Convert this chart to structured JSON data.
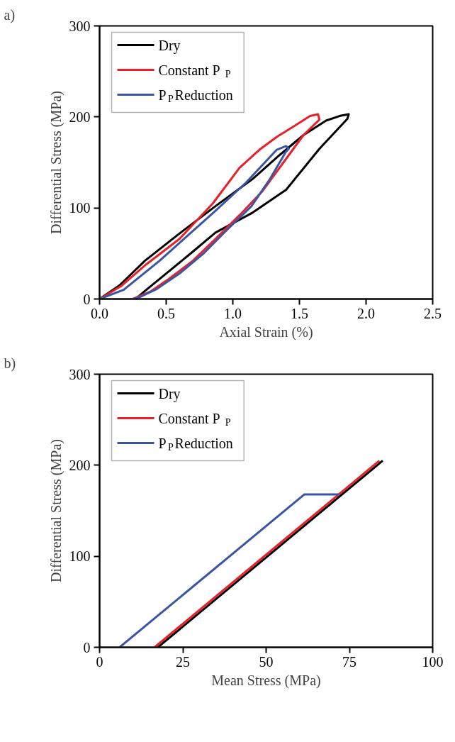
{
  "chart_data": [
    {
      "type": "line",
      "title": "a)",
      "xlabel": "Axial Strain (%)",
      "ylabel": "Differential Stress (MPa)",
      "xlim": [
        0,
        2.5
      ],
      "ylim": [
        0,
        300
      ],
      "xticks": [
        {
          "value": 0,
          "label": "0.0"
        },
        0.5,
        {
          "value": 1,
          "label": "1.0"
        },
        1.5,
        {
          "value": 2,
          "label": "2.0"
        },
        2.5
      ],
      "yticks": [
        0,
        100,
        200,
        300
      ],
      "grid": false,
      "legend": "top left",
      "marker": "none",
      "line_style": "solid",
      "series": [
        {
          "name": "Dry",
          "color": "#000000",
          "x": [
            0,
            0.15,
            0.34,
            0.6,
            0.87,
            1.15,
            1.35,
            1.53,
            1.7,
            1.8,
            1.87,
            1.86,
            1.65,
            1.4,
            1.15,
            0.87,
            0.7,
            0.5,
            0.35,
            0.27
          ],
          "values": [
            0,
            15,
            42,
            72,
            102,
            132,
            158,
            180,
            196,
            201,
            203,
            198,
            165,
            120,
            95,
            73,
            52,
            28,
            10,
            0
          ]
        },
        {
          "name": "Constant P$_{P}$",
          "color": "#e8202a",
          "x": [
            0,
            0.16,
            0.35,
            0.6,
            0.85,
            1.05,
            1.2,
            1.33,
            1.45,
            1.58,
            1.64,
            1.65,
            1.53,
            1.38,
            1.22,
            1.05,
            0.87,
            0.7,
            0.52,
            0.38,
            0.25
          ],
          "values": [
            0,
            14,
            38,
            66,
            105,
            144,
            164,
            178,
            189,
            201,
            203,
            197,
            180,
            150,
            118,
            92,
            66,
            42,
            22,
            8,
            0
          ]
        },
        {
          "name": "P$_{P}$Reduction",
          "color": "#3a55a4",
          "x": [
            0,
            0.18,
            0.45,
            0.87,
            1.1,
            1.33,
            1.4,
            1.42,
            1.4,
            1.28,
            1.14,
            0.95,
            0.78,
            0.6,
            0.43,
            0.3,
            0.25
          ],
          "values": [
            0,
            10,
            42,
            97,
            128,
            164,
            168,
            165,
            162,
            132,
            102,
            75,
            50,
            28,
            11,
            2,
            0
          ]
        }
      ]
    },
    {
      "type": "line",
      "title": "b)",
      "xlabel": "Mean Stress (MPa)",
      "ylabel": "Differential Stress (MPa)",
      "xlim": [
        0,
        100
      ],
      "ylim": [
        0,
        300
      ],
      "xticks": [
        0,
        25,
        50,
        75,
        100
      ],
      "yticks": [
        0,
        100,
        200,
        300
      ],
      "grid": false,
      "legend": "top left",
      "marker": "none",
      "line_style": "solid",
      "series": [
        {
          "name": "Dry",
          "color": "#000000",
          "x": [
            17.5,
            85
          ],
          "values": [
            0,
            205
          ]
        },
        {
          "name": "Constant P$_{P}$",
          "color": "#e8202a",
          "x": [
            16.5,
            84
          ],
          "values": [
            0,
            205
          ]
        },
        {
          "name": "P$_{P}$Reduction",
          "color": "#3a55a4",
          "x": [
            6,
            61.5,
            72
          ],
          "values": [
            0,
            168,
            168
          ]
        }
      ]
    }
  ]
}
